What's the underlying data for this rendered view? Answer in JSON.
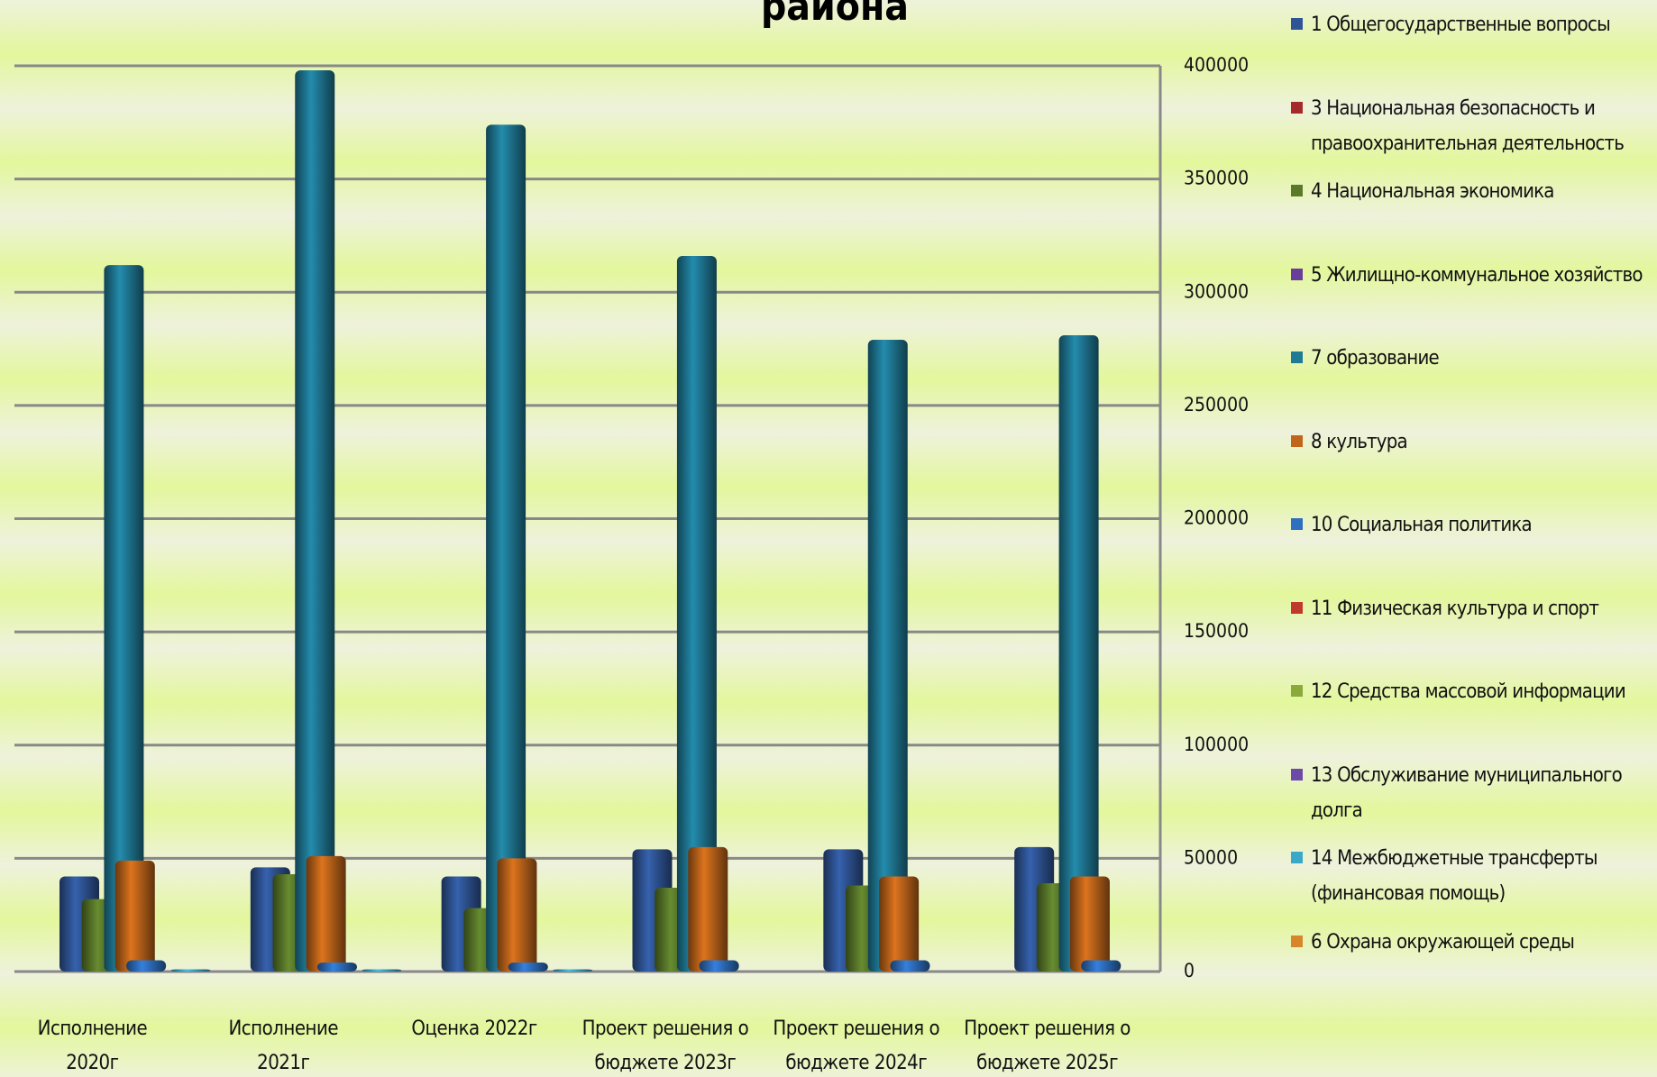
{
  "chart_data": {
    "type": "bar",
    "title": "района",
    "categories": [
      "Исполнение 2020г",
      "Исполнение 2021г",
      "Оценка 2022г",
      "Проект решения о бюджете 2023г",
      "Проект решения о бюджете 2024г",
      "Проект решения о бюджете 2025г"
    ],
    "series": [
      {
        "name": "1 Общегосударственные вопросы",
        "color": "#2f5597",
        "values": [
          42000,
          46000,
          42000,
          54000,
          54000,
          55000
        ]
      },
      {
        "name": "3 Национальная  безопасность и правоохранительная деятельность",
        "color": "#a52a2a",
        "values": [
          0,
          0,
          0,
          0,
          0,
          0
        ]
      },
      {
        "name": "4 Национальная экономика",
        "color": "#5a7a2a",
        "values": [
          32000,
          43000,
          28000,
          37000,
          38000,
          39000
        ]
      },
      {
        "name": "5 Жилищно-коммунальное хозяйство",
        "color": "#6a3d9a",
        "values": [
          0,
          0,
          0,
          0,
          0,
          0
        ]
      },
      {
        "name": "7 образование",
        "color": "#1f7a96",
        "values": [
          312000,
          398000,
          374000,
          316000,
          279000,
          281000
        ]
      },
      {
        "name": "8 культура",
        "color": "#c0651a",
        "values": [
          49000,
          51000,
          50000,
          55000,
          42000,
          42000
        ]
      },
      {
        "name": "10 Социальная политика",
        "color": "#2e6fc0",
        "values": [
          5000,
          4000,
          4000,
          5000,
          5000,
          5000
        ]
      },
      {
        "name": "11 Физическая культура и спорт",
        "color": "#c0392b",
        "values": [
          0,
          0,
          0,
          0,
          0,
          0
        ]
      },
      {
        "name": "12 Средства массовой информации",
        "color": "#8aaa3a",
        "values": [
          0,
          0,
          0,
          0,
          0,
          0
        ]
      },
      {
        "name": "13 Обслуживание муниципального долга",
        "color": "#6b4aa8",
        "values": [
          0,
          0,
          0,
          0,
          0,
          0
        ]
      },
      {
        "name": "14 Межбюджетные трансферты (финансовая помощь)",
        "color": "#3aa8c8",
        "values": [
          1000,
          1000,
          1000,
          0,
          0,
          0
        ]
      },
      {
        "name": "6 Охрана окружающей среды",
        "color": "#d8862a",
        "values": [
          0,
          0,
          0,
          0,
          0,
          0
        ]
      }
    ],
    "ylim": [
      0,
      400000
    ],
    "yticks": [
      0,
      50000,
      100000,
      150000,
      200000,
      250000,
      300000,
      350000,
      400000
    ],
    "grid": true
  }
}
